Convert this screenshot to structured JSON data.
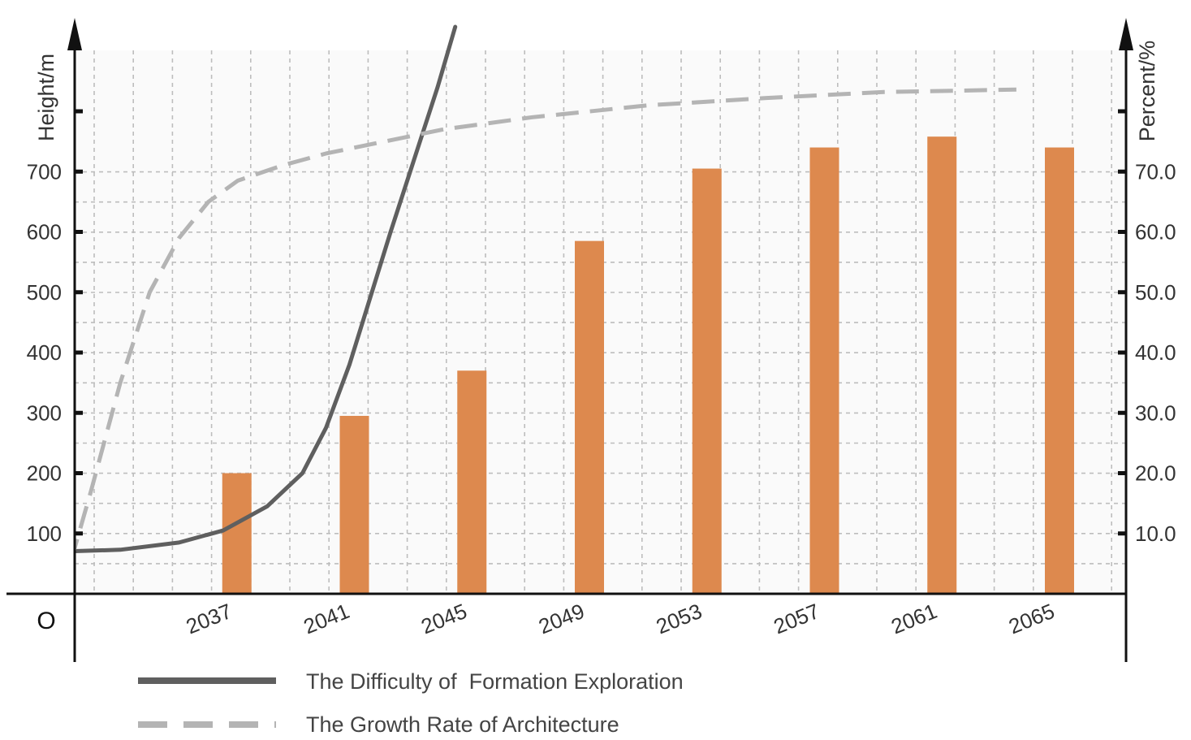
{
  "chart_data": {
    "type": "bar",
    "title": "",
    "ylabel_left": "Height/m",
    "ylabel_right": "Percent/%",
    "origin_label": "O",
    "categories": [
      "2037",
      "2041",
      "2045",
      "2049",
      "2053",
      "2057",
      "2061",
      "2065"
    ],
    "series": [
      {
        "type": "bar",
        "axis": "left",
        "values": [
          200,
          295,
          370,
          585,
          705,
          740,
          758,
          740
        ],
        "color": "#DD894E"
      },
      {
        "type": "line",
        "name": "The Difficulty of  Formation Exploration",
        "axis": "left",
        "style": "solid",
        "color": "#5f5f5f",
        "x": [
          2032.0,
          2034.0,
          2036.0,
          2037.5,
          2039.0,
          2040.2,
          2041.0,
          2041.8,
          2042.5,
          2043.2,
          2044.0,
          2044.8,
          2045.4
        ],
        "values": [
          70,
          73,
          85,
          105,
          145,
          200,
          275,
          380,
          490,
          600,
          720,
          840,
          940
        ]
      },
      {
        "type": "line",
        "name": "The Growth Rate of Architecture",
        "axis": "right",
        "style": "dashed",
        "color": "#b4b4b4",
        "x": [
          2032.0,
          2033.0,
          2034.0,
          2035.0,
          2036.0,
          2037.0,
          2038.0,
          2039.5,
          2041.0,
          2043.0,
          2045.0,
          2048.0,
          2052.0,
          2056.0,
          2060.0,
          2064.5
        ],
        "values": [
          0,
          17,
          35,
          50,
          59,
          65,
          68.5,
          71,
          73,
          75,
          77,
          79,
          81,
          82.2,
          83.2,
          83.6
        ]
      }
    ],
    "y_left": {
      "ticks": [
        100,
        200,
        300,
        400,
        500,
        600,
        700
      ],
      "ylim": [
        0,
        900
      ]
    },
    "y_right": {
      "ticks": [
        "10.0",
        "20.0",
        "30.0",
        "40.0",
        "50.0",
        "60.0",
        "70.0"
      ],
      "ylim": [
        0,
        90
      ]
    },
    "xlim": [
      2032,
      2067
    ],
    "grid": true,
    "legend": {
      "placement": "bottom-left",
      "items": [
        {
          "label": "The Difficulty of  Formation Exploration",
          "style": "solid",
          "color": "#5f5f5f"
        },
        {
          "label": "The Growth Rate of Architecture",
          "style": "dashed",
          "color": "#b4b4b4"
        }
      ]
    }
  }
}
